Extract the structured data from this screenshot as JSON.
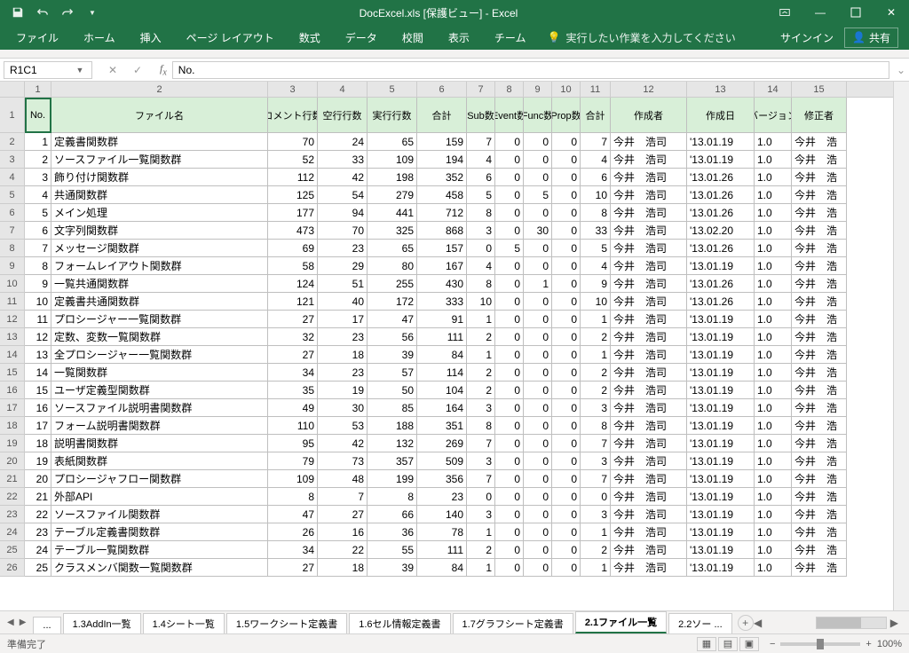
{
  "title": "DocExcel.xls  [保護ビュー] - Excel",
  "qat": {
    "save": "save",
    "undo": "undo",
    "redo": "redo"
  },
  "winbtns": {
    "ribbon": "⌃",
    "min": "—",
    "max": "□",
    "close": "✕"
  },
  "tabs": [
    "ファイル",
    "ホーム",
    "挿入",
    "ページ レイアウト",
    "数式",
    "データ",
    "校閲",
    "表示",
    "チーム"
  ],
  "tellme": "実行したい作業を入力してください",
  "signin": "サインイン",
  "share": "共有",
  "namebox": "R1C1",
  "formula": "No.",
  "colnums": [
    "1",
    "2",
    "3",
    "4",
    "5",
    "6",
    "7",
    "8",
    "9",
    "10",
    "11",
    "12",
    "13",
    "14",
    "15"
  ],
  "headers": [
    "No.",
    "ファイル名",
    "コメント行数",
    "空行行数",
    "実行行数",
    "合計",
    "Sub数",
    "Event数",
    "Func数",
    "Prop数",
    "合計",
    "作成者",
    "作成日",
    "バージョン",
    "修正者"
  ],
  "rows": [
    [
      1,
      "定義書関数群",
      70,
      24,
      65,
      159,
      7,
      0,
      0,
      0,
      7,
      "今井　浩司",
      "'13.01.19",
      "1.0",
      "今井　浩"
    ],
    [
      2,
      "ソースファイル一覧関数群",
      52,
      33,
      109,
      194,
      4,
      0,
      0,
      0,
      4,
      "今井　浩司",
      "'13.01.19",
      "1.0",
      "今井　浩"
    ],
    [
      3,
      "飾り付け関数群",
      112,
      42,
      198,
      352,
      6,
      0,
      0,
      0,
      6,
      "今井　浩司",
      "'13.01.26",
      "1.0",
      "今井　浩"
    ],
    [
      4,
      "共通関数群",
      125,
      54,
      279,
      458,
      5,
      0,
      5,
      0,
      10,
      "今井　浩司",
      "'13.01.26",
      "1.0",
      "今井　浩"
    ],
    [
      5,
      "メイン処理",
      177,
      94,
      441,
      712,
      8,
      0,
      0,
      0,
      8,
      "今井　浩司",
      "'13.01.26",
      "1.0",
      "今井　浩"
    ],
    [
      6,
      "文字列関数群",
      473,
      70,
      325,
      868,
      3,
      0,
      30,
      0,
      33,
      "今井　浩司",
      "'13.02.20",
      "1.0",
      "今井　浩"
    ],
    [
      7,
      "メッセージ関数群",
      69,
      23,
      65,
      157,
      0,
      5,
      0,
      0,
      5,
      "今井　浩司",
      "'13.01.26",
      "1.0",
      "今井　浩"
    ],
    [
      8,
      "フォームレイアウト関数群",
      58,
      29,
      80,
      167,
      4,
      0,
      0,
      0,
      4,
      "今井　浩司",
      "'13.01.19",
      "1.0",
      "今井　浩"
    ],
    [
      9,
      "一覧共通関数群",
      124,
      51,
      255,
      430,
      8,
      0,
      1,
      0,
      9,
      "今井　浩司",
      "'13.01.26",
      "1.0",
      "今井　浩"
    ],
    [
      10,
      "定義書共通関数群",
      121,
      40,
      172,
      333,
      10,
      0,
      0,
      0,
      10,
      "今井　浩司",
      "'13.01.26",
      "1.0",
      "今井　浩"
    ],
    [
      11,
      "プロシージャー一覧関数群",
      27,
      17,
      47,
      91,
      1,
      0,
      0,
      0,
      1,
      "今井　浩司",
      "'13.01.19",
      "1.0",
      "今井　浩"
    ],
    [
      12,
      "定数、変数一覧関数群",
      32,
      23,
      56,
      111,
      2,
      0,
      0,
      0,
      2,
      "今井　浩司",
      "'13.01.19",
      "1.0",
      "今井　浩"
    ],
    [
      13,
      "全プロシージャー一覧関数群",
      27,
      18,
      39,
      84,
      1,
      0,
      0,
      0,
      1,
      "今井　浩司",
      "'13.01.19",
      "1.0",
      "今井　浩"
    ],
    [
      14,
      "一覧関数群",
      34,
      23,
      57,
      114,
      2,
      0,
      0,
      0,
      2,
      "今井　浩司",
      "'13.01.19",
      "1.0",
      "今井　浩"
    ],
    [
      15,
      "ユーザ定義型関数群",
      35,
      19,
      50,
      104,
      2,
      0,
      0,
      0,
      2,
      "今井　浩司",
      "'13.01.19",
      "1.0",
      "今井　浩"
    ],
    [
      16,
      "ソースファイル説明書関数群",
      49,
      30,
      85,
      164,
      3,
      0,
      0,
      0,
      3,
      "今井　浩司",
      "'13.01.19",
      "1.0",
      "今井　浩"
    ],
    [
      17,
      "フォーム説明書関数群",
      110,
      53,
      188,
      351,
      8,
      0,
      0,
      0,
      8,
      "今井　浩司",
      "'13.01.19",
      "1.0",
      "今井　浩"
    ],
    [
      18,
      "説明書関数群",
      95,
      42,
      132,
      269,
      7,
      0,
      0,
      0,
      7,
      "今井　浩司",
      "'13.01.19",
      "1.0",
      "今井　浩"
    ],
    [
      19,
      "表紙関数群",
      79,
      73,
      357,
      509,
      3,
      0,
      0,
      0,
      3,
      "今井　浩司",
      "'13.01.19",
      "1.0",
      "今井　浩"
    ],
    [
      20,
      "プロシージャフロー関数群",
      109,
      48,
      199,
      356,
      7,
      0,
      0,
      0,
      7,
      "今井　浩司",
      "'13.01.19",
      "1.0",
      "今井　浩"
    ],
    [
      21,
      "外部API",
      8,
      7,
      8,
      23,
      0,
      0,
      0,
      0,
      0,
      "今井　浩司",
      "'13.01.19",
      "1.0",
      "今井　浩"
    ],
    [
      22,
      "ソースファイル関数群",
      47,
      27,
      66,
      140,
      3,
      0,
      0,
      0,
      3,
      "今井　浩司",
      "'13.01.19",
      "1.0",
      "今井　浩"
    ],
    [
      23,
      "テーブル定義書関数群",
      26,
      16,
      36,
      78,
      1,
      0,
      0,
      0,
      1,
      "今井　浩司",
      "'13.01.19",
      "1.0",
      "今井　浩"
    ],
    [
      24,
      "テーブル一覧関数群",
      34,
      22,
      55,
      111,
      2,
      0,
      0,
      0,
      2,
      "今井　浩司",
      "'13.01.19",
      "1.0",
      "今井　浩"
    ],
    [
      25,
      "クラスメンバ関数一覧関数群",
      27,
      18,
      39,
      84,
      1,
      0,
      0,
      0,
      1,
      "今井　浩司",
      "'13.01.19",
      "1.0",
      "今井　浩"
    ]
  ],
  "sheets": [
    "...",
    "1.3AddIn一覧",
    "1.4シート一覧",
    "1.5ワークシート定義書",
    "1.6セル情報定義書",
    "1.7グラフシート定義書",
    "2.1ファイル一覧",
    "2.2ソー ..."
  ],
  "active_sheet": 6,
  "status": "準備完了",
  "zoom": "100%"
}
